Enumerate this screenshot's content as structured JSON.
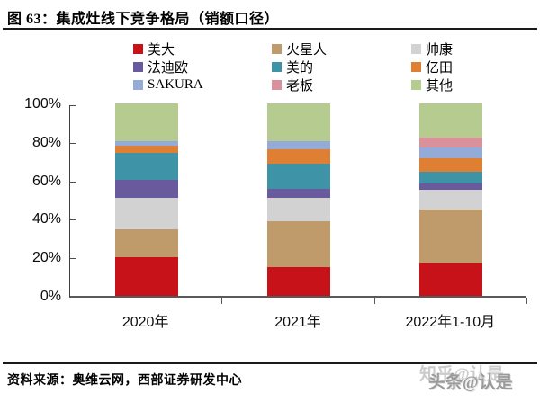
{
  "figure": {
    "title": "图 63：集成灶线下竞争格局（销额口径）",
    "source": "资料来源：奥维云网，西部证券研发中心",
    "watermark_back": "知乎@认是",
    "watermark_front": "头条@认是"
  },
  "chart_data": {
    "type": "bar",
    "stacked": true,
    "title": "集成灶线下竞争格局（销额口径）",
    "categories": [
      "2020年",
      "2021年",
      "2022年1-10月"
    ],
    "series": [
      {
        "name": "美大",
        "color": "#C81219",
        "values": [
          20.0,
          15.0,
          17.5
        ]
      },
      {
        "name": "火星人",
        "color": "#BF9B6C",
        "values": [
          14.5,
          24.0,
          27.5
        ]
      },
      {
        "name": "帅康",
        "color": "#D2D2D2",
        "values": [
          16.5,
          12.0,
          10.0
        ]
      },
      {
        "name": "法迪欧",
        "color": "#685A9D",
        "values": [
          9.5,
          4.5,
          3.5
        ]
      },
      {
        "name": "美的",
        "color": "#3E93A6",
        "values": [
          14.0,
          13.0,
          6.0
        ]
      },
      {
        "name": "亿田",
        "color": "#DF7F33",
        "values": [
          3.5,
          7.5,
          7.0
        ]
      },
      {
        "name": "SAKURA",
        "color": "#95ABD7",
        "values": [
          2.5,
          4.5,
          5.5
        ]
      },
      {
        "name": "老板",
        "color": "#D9929B",
        "values": [
          0.0,
          0.0,
          5.5
        ]
      },
      {
        "name": "其他",
        "color": "#B6CB8F",
        "values": [
          19.5,
          19.5,
          17.5
        ]
      }
    ],
    "xlabel": "",
    "ylabel": "",
    "ylim": [
      0,
      100
    ],
    "yticks": [
      "0%",
      "20%",
      "40%",
      "60%",
      "80%",
      "100%"
    ],
    "legend_position": "top",
    "grid": false,
    "axis_color": "#595959"
  }
}
